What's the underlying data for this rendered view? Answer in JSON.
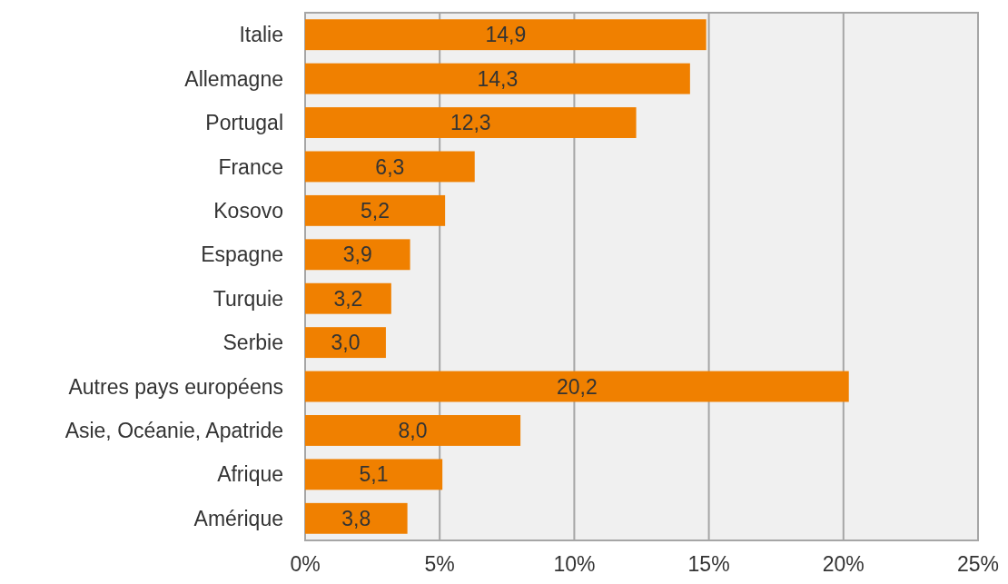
{
  "chart_data": {
    "type": "bar",
    "orientation": "horizontal",
    "categories": [
      "Italie",
      "Allemagne",
      "Portugal",
      "France",
      "Kosovo",
      "Espagne",
      "Turquie",
      "Serbie",
      "Autres pays européens",
      "Asie, Océanie, Apatride",
      "Afrique",
      "Amérique"
    ],
    "values": [
      14.9,
      14.3,
      12.3,
      6.3,
      5.2,
      3.9,
      3.2,
      3.0,
      20.2,
      8.0,
      5.1,
      3.8
    ],
    "value_labels": [
      "14,9",
      "14,3",
      "12,3",
      "6,3",
      "5,2",
      "3,9",
      "3,2",
      "3,0",
      "20,2",
      "8,0",
      "5,1",
      "3,8"
    ],
    "color": "#f08000",
    "xlim": [
      0,
      25
    ],
    "xticks": [
      {
        "value": 0,
        "label": "0%"
      },
      {
        "value": 5,
        "label": "5%"
      },
      {
        "value": 10,
        "label": "10%"
      },
      {
        "value": 15,
        "label": "15%"
      },
      {
        "value": 20,
        "label": "20%"
      },
      {
        "value": 25,
        "label": "25%"
      }
    ],
    "grid": "x"
  }
}
